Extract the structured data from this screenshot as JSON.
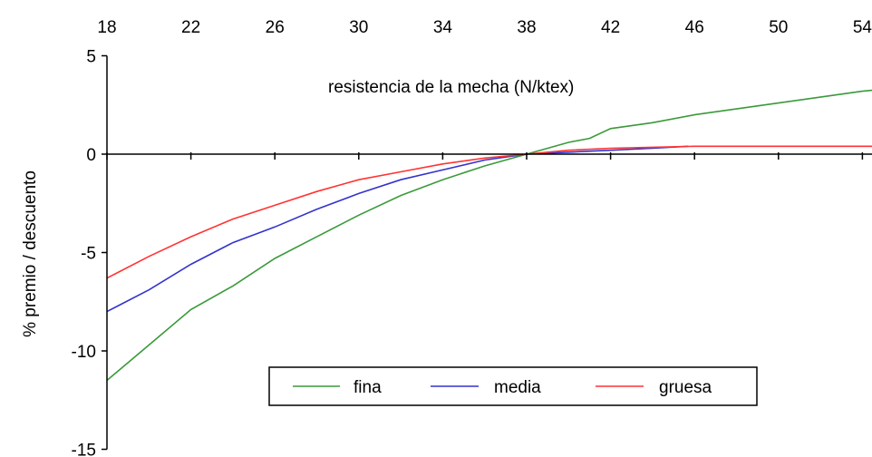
{
  "chart_data": {
    "type": "line",
    "xlabel": "resistencia de la mecha (N/ktex)",
    "ylabel": "% premio / descuento",
    "xlim": [
      18,
      55
    ],
    "ylim": [
      -15,
      5
    ],
    "x_ticks": [
      18,
      22,
      26,
      30,
      34,
      38,
      42,
      46,
      50,
      54
    ],
    "y_ticks": [
      5,
      0,
      -5,
      -10,
      -15
    ],
    "x_axis_position": "top",
    "grid": false,
    "legend_position": "bottom-center",
    "series": [
      {
        "name": "fina",
        "color": "#3a9a3a",
        "x": [
          18,
          20,
          22,
          24,
          26,
          28,
          30,
          32,
          34,
          36,
          38,
          40,
          41,
          42,
          44,
          46,
          48,
          50,
          52,
          54,
          55
        ],
        "y": [
          -11.5,
          -9.7,
          -7.9,
          -6.7,
          -5.3,
          -4.2,
          -3.1,
          -2.1,
          -1.3,
          -0.6,
          0,
          0.6,
          0.8,
          1.3,
          1.6,
          2.0,
          2.3,
          2.6,
          2.9,
          3.2,
          3.3
        ]
      },
      {
        "name": "media",
        "color": "#3333cc",
        "x": [
          18,
          20,
          22,
          24,
          26,
          28,
          30,
          32,
          34,
          36,
          38,
          40,
          42,
          44,
          45.7
        ],
        "y": [
          -8.0,
          -6.9,
          -5.6,
          -4.5,
          -3.7,
          -2.8,
          -2.0,
          -1.3,
          -0.8,
          -0.3,
          0,
          0.1,
          0.2,
          0.3,
          0.4
        ]
      },
      {
        "name": "gruesa",
        "color": "#ff3333",
        "x": [
          18,
          20,
          22,
          24,
          26,
          28,
          30,
          32,
          34,
          36,
          38,
          40,
          42,
          44,
          46,
          48,
          50,
          52,
          54,
          55
        ],
        "y": [
          -6.3,
          -5.2,
          -4.2,
          -3.3,
          -2.6,
          -1.9,
          -1.3,
          -0.9,
          -0.5,
          -0.2,
          0,
          0.2,
          0.3,
          0.35,
          0.4,
          0.4,
          0.4,
          0.4,
          0.4,
          0.4
        ]
      }
    ]
  }
}
